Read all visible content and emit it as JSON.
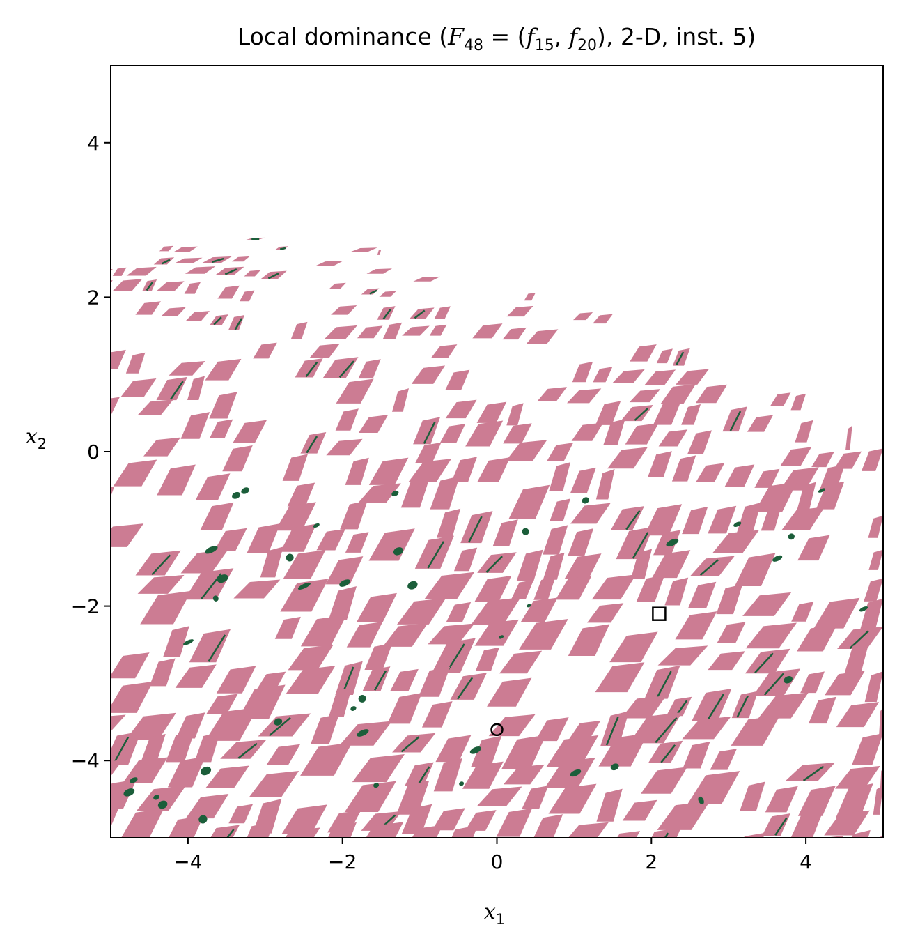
{
  "chart_data": {
    "type": "heatmap",
    "title": {
      "prefix": "Local dominance (",
      "F": "F",
      "F_sub": "48",
      "eq": " = (",
      "f1": "f",
      "f1_sub": "15",
      "comma": ", ",
      "f2": "f",
      "f2_sub": "20",
      "suffix": "), 2-D, inst. 5)"
    },
    "xlabel": {
      "base": "x",
      "sub": "1"
    },
    "ylabel": {
      "base": "x",
      "sub": "2"
    },
    "xlim": [
      -5,
      5
    ],
    "ylim": [
      -5,
      5
    ],
    "xticks": [
      -4,
      -2,
      0,
      2,
      4
    ],
    "yticks": [
      -4,
      -2,
      0,
      2,
      4
    ],
    "xtick_labels": [
      "−4",
      "−2",
      "0",
      "2",
      "4"
    ],
    "ytick_labels": [
      "−4",
      "−2",
      "0",
      "2",
      "4"
    ],
    "region_colors": {
      "dominated": "#cc7c93",
      "locally_efficient": "#1b5e3a",
      "background": "#ffffff"
    },
    "markers": [
      {
        "shape": "circle",
        "x": 0.0,
        "y": -3.6
      },
      {
        "shape": "square",
        "x": 2.1,
        "y": -2.1
      }
    ],
    "bands": [
      {
        "y": 2.95,
        "thickness": 0.03,
        "fill": 0.12,
        "green": 0.55,
        "x_end": -3.0
      },
      {
        "y": 2.75,
        "thickness": 0.05,
        "fill": 0.25,
        "green": 0.4,
        "x_end": -1.5
      },
      {
        "y": 2.55,
        "thickness": 0.07,
        "fill": 0.35,
        "green": 0.3,
        "x_end": -0.5
      },
      {
        "y": 2.35,
        "thickness": 0.09,
        "fill": 0.4,
        "green": 0.25,
        "x_end": 0.5
      },
      {
        "y": 2.1,
        "thickness": 0.12,
        "fill": 0.45,
        "green": 0.2,
        "x_end": 1.5
      },
      {
        "y": 1.8,
        "thickness": 0.15,
        "fill": 0.5,
        "green": 0.18,
        "x_end": 2.5
      },
      {
        "y": 1.5,
        "thickness": 0.18,
        "fill": 0.55,
        "green": 0.15,
        "x_end": 3.2
      },
      {
        "y": 1.2,
        "thickness": 0.2,
        "fill": 0.55,
        "green": 0.12,
        "x_end": 4.0
      },
      {
        "y": 0.9,
        "thickness": 0.22,
        "fill": 0.55,
        "green": 0.12,
        "x_end": 4.6
      },
      {
        "y": 0.6,
        "thickness": 0.24,
        "fill": 0.6,
        "green": 0.1,
        "x_end": 5.0
      },
      {
        "y": 0.3,
        "thickness": 0.26,
        "fill": 0.6,
        "green": 0.1,
        "x_end": 5.0
      },
      {
        "y": 0.0,
        "thickness": 0.28,
        "fill": 0.65,
        "green": 0.1,
        "x_end": 5.0
      },
      {
        "y": -0.35,
        "thickness": 0.3,
        "fill": 0.7,
        "green": 0.1,
        "x_end": 5.0
      },
      {
        "y": -0.7,
        "thickness": 0.3,
        "fill": 0.7,
        "green": 0.1,
        "x_end": 5.0
      },
      {
        "y": -1.05,
        "thickness": 0.3,
        "fill": 0.7,
        "green": 0.12,
        "x_end": 5.0
      },
      {
        "y": -1.4,
        "thickness": 0.3,
        "fill": 0.72,
        "green": 0.14,
        "x_end": 5.0
      },
      {
        "y": -1.75,
        "thickness": 0.3,
        "fill": 0.72,
        "green": 0.14,
        "x_end": 5.0
      },
      {
        "y": -2.1,
        "thickness": 0.3,
        "fill": 0.72,
        "green": 0.12,
        "x_end": 5.0
      },
      {
        "y": -2.45,
        "thickness": 0.3,
        "fill": 0.75,
        "green": 0.12,
        "x_end": 5.0
      },
      {
        "y": -2.8,
        "thickness": 0.3,
        "fill": 0.75,
        "green": 0.12,
        "x_end": 5.0
      },
      {
        "y": -3.15,
        "thickness": 0.3,
        "fill": 0.78,
        "green": 0.1,
        "x_end": 5.0
      },
      {
        "y": -3.5,
        "thickness": 0.3,
        "fill": 0.78,
        "green": 0.1,
        "x_end": 5.0
      },
      {
        "y": -3.85,
        "thickness": 0.3,
        "fill": 0.8,
        "green": 0.1,
        "x_end": 5.0
      },
      {
        "y": -4.2,
        "thickness": 0.3,
        "fill": 0.8,
        "green": 0.1,
        "x_end": 5.0
      },
      {
        "y": -4.55,
        "thickness": 0.3,
        "fill": 0.8,
        "green": 0.1,
        "x_end": 5.0
      },
      {
        "y": -4.85,
        "thickness": 0.3,
        "fill": 0.8,
        "green": 0.1,
        "x_end": 5.0
      }
    ]
  }
}
